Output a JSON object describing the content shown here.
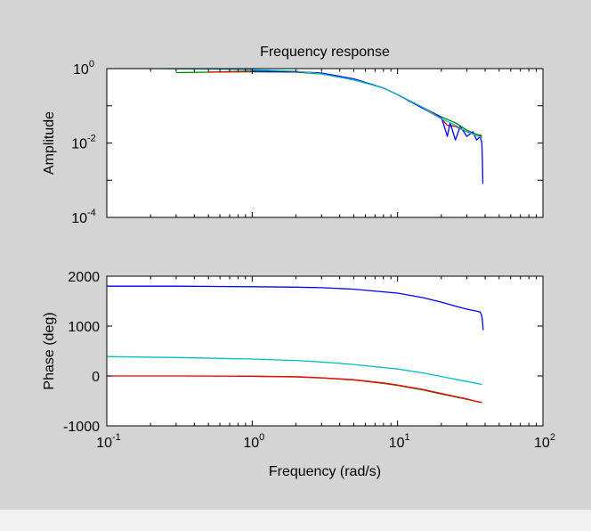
{
  "figure": {
    "background": "#d4d4d4",
    "outer_background": "#f0f0f0",
    "axes_background": "#ffffff"
  },
  "colors": {
    "blue": "#0000ff",
    "green": "#008000",
    "red": "#ff0000",
    "cyan": "#00c0c0"
  },
  "chart_data": [
    {
      "type": "line",
      "title": "Frequency response",
      "xlabel": "",
      "ylabel": "Amplitude",
      "xscale": "log",
      "yscale": "log",
      "xlim": [
        0.1,
        100
      ],
      "ylim": [
        0.0001,
        1
      ],
      "yticks": [
        {
          "base": "10",
          "exp": "0",
          "value": 1
        },
        {
          "base": "10",
          "exp": "-2",
          "value": 0.01
        },
        {
          "base": "10",
          "exp": "-4",
          "value": 0.0001
        }
      ],
      "grid": false,
      "series": [
        {
          "color": "#008000",
          "x": [
            0.3,
            0.5,
            1,
            2,
            3,
            5,
            8,
            10,
            15,
            20,
            25,
            30,
            35,
            38
          ],
          "y": [
            0.78,
            0.8,
            0.82,
            0.8,
            0.72,
            0.5,
            0.3,
            0.2,
            0.09,
            0.05,
            0.035,
            0.022,
            0.017,
            0.016
          ]
        },
        {
          "color": "#ff0000",
          "x": [
            0.5,
            1,
            2,
            3,
            5,
            8,
            10,
            15,
            20,
            22,
            25,
            30,
            35,
            38
          ],
          "y": [
            0.8,
            0.85,
            0.82,
            0.74,
            0.52,
            0.3,
            0.2,
            0.085,
            0.045,
            0.03,
            0.028,
            0.02,
            0.016,
            0.015
          ]
        },
        {
          "color": "#0000ff",
          "x": [
            1,
            2,
            3,
            5,
            8,
            10,
            15,
            20,
            22,
            23,
            25,
            27,
            30,
            33,
            35,
            37,
            38,
            38.3,
            38.6
          ],
          "y": [
            0.85,
            0.83,
            0.76,
            0.53,
            0.3,
            0.2,
            0.085,
            0.05,
            0.015,
            0.035,
            0.012,
            0.028,
            0.015,
            0.02,
            0.012,
            0.015,
            0.01,
            0.004,
            0.0008
          ]
        },
        {
          "color": "#00c0c0",
          "x": [
            0.1,
            0.2,
            0.5,
            1,
            2,
            3,
            5,
            8,
            10,
            15,
            20,
            25,
            30,
            35,
            38
          ],
          "y": [
            1,
            1,
            0.97,
            0.93,
            0.85,
            0.72,
            0.5,
            0.3,
            0.2,
            0.09,
            0.045,
            0.03,
            0.02,
            0.016,
            0.014
          ]
        }
      ]
    },
    {
      "type": "line",
      "title": "",
      "xlabel": "Frequency (rad/s)",
      "ylabel": "Phase (deg)",
      "xscale": "log",
      "yscale": "linear",
      "xlim": [
        0.1,
        100
      ],
      "ylim": [
        -1000,
        2000
      ],
      "xticks": [
        {
          "base": "10",
          "exp": "-1",
          "value": 0.1
        },
        {
          "base": "10",
          "exp": "0",
          "value": 1
        },
        {
          "base": "10",
          "exp": "1",
          "value": 10
        },
        {
          "base": "10",
          "exp": "2",
          "value": 100
        }
      ],
      "yticks": [
        {
          "label": "2000",
          "value": 2000
        },
        {
          "label": "1000",
          "value": 1000
        },
        {
          "label": "0",
          "value": 0
        },
        {
          "label": "-1000",
          "value": -1000
        }
      ],
      "grid": false,
      "series": [
        {
          "color": "#0000ff",
          "x": [
            0.1,
            0.3,
            1,
            2,
            3,
            5,
            10,
            15,
            20,
            25,
            30,
            35,
            37,
            38,
            38.5,
            38.8
          ],
          "y": [
            1800,
            1800,
            1790,
            1780,
            1770,
            1740,
            1660,
            1570,
            1480,
            1400,
            1340,
            1300,
            1280,
            1200,
            1050,
            920
          ]
        },
        {
          "color": "#00c0c0",
          "x": [
            0.1,
            0.3,
            1,
            2,
            3,
            5,
            10,
            15,
            20,
            30,
            38
          ],
          "y": [
            390,
            370,
            340,
            310,
            280,
            230,
            140,
            60,
            -10,
            -110,
            -170
          ]
        },
        {
          "color": "#008000",
          "x": [
            0.8,
            1,
            2,
            3,
            5,
            8,
            10,
            15,
            20,
            25,
            30,
            35,
            38
          ],
          "y": [
            0,
            -5,
            -20,
            -40,
            -80,
            -150,
            -190,
            -280,
            -360,
            -420,
            -470,
            -510,
            -530
          ]
        },
        {
          "color": "#ff0000",
          "x": [
            0.1,
            0.3,
            1,
            2,
            3,
            5,
            8,
            10,
            15,
            20,
            25,
            30,
            35,
            38
          ],
          "y": [
            0,
            0,
            -5,
            -15,
            -35,
            -75,
            -140,
            -180,
            -270,
            -350,
            -410,
            -460,
            -510,
            -530
          ]
        }
      ]
    }
  ]
}
